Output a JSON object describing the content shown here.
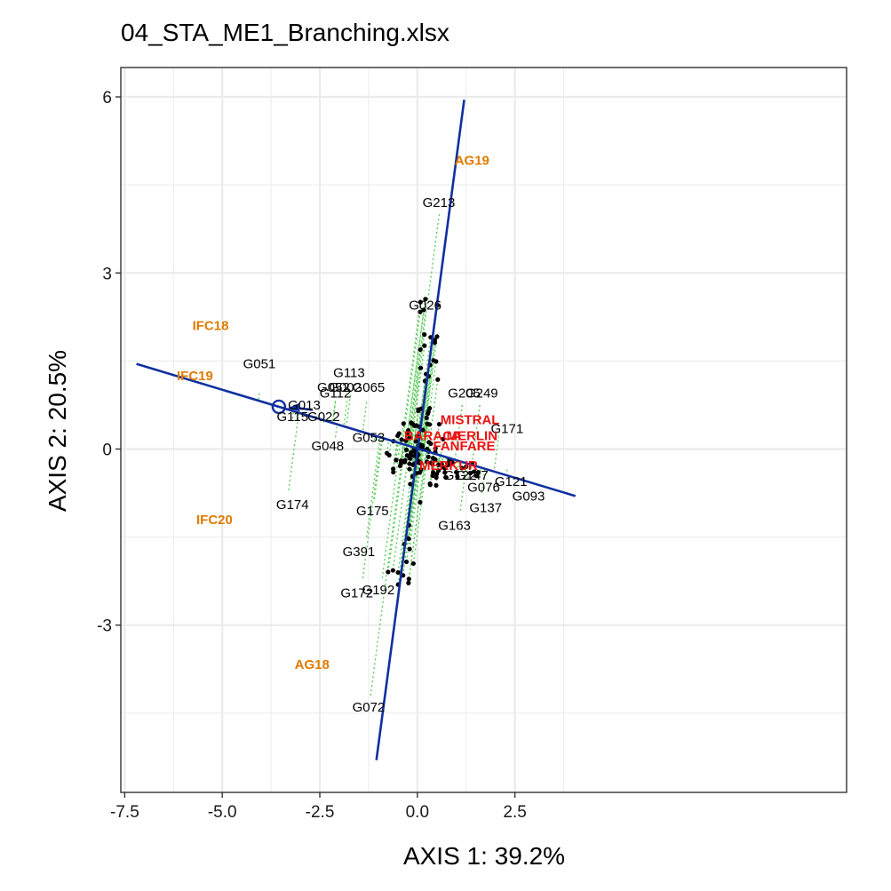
{
  "chart_data": {
    "type": "scatter",
    "title": "04_STA_ME1_Branching.xlsx",
    "xlabel": "AXIS 1: 39.2%",
    "ylabel": "AXIS 2: 20.5%",
    "xlim": [
      -7.6,
      11.0
    ],
    "ylim": [
      -5.85,
      6.5
    ],
    "x_ticks": [
      -7.5,
      -5.0,
      -2.5,
      0.0,
      2.5
    ],
    "x_tick_labels": [
      "-7.5",
      "-5.0",
      "-2.5",
      "0.0",
      "2.5"
    ],
    "y_ticks": [
      -3,
      0,
      3,
      6
    ],
    "y_tick_labels": [
      "-3",
      "0",
      "3",
      "6"
    ],
    "grid": true,
    "colors": {
      "axis_line": "#1030a0",
      "projection": "#55cc55",
      "point": "#000000",
      "environment": "#e07b00",
      "check": "#ee1111",
      "grid": "#ebebeb"
    },
    "average_environment_axis": {
      "x1": -7.2,
      "y1": 1.45,
      "x2": 4.05,
      "y2": -0.8,
      "aec_point": [
        -3.55,
        0.72
      ]
    },
    "perpendicular_axis": {
      "x1": -1.05,
      "y1": -5.3,
      "x2": 1.2,
      "y2": 5.95
    },
    "environments": [
      {
        "label": "AG19",
        "x": 1.4,
        "y": 4.92
      },
      {
        "label": "IFC18",
        "x": -5.3,
        "y": 2.1
      },
      {
        "label": "IFC19",
        "x": -5.7,
        "y": 1.25
      },
      {
        "label": "IFC20",
        "x": -5.2,
        "y": -1.2
      },
      {
        "label": "AG18",
        "x": -2.7,
        "y": -3.67
      }
    ],
    "checks": [
      {
        "label": "MISTRAL",
        "x": 1.35,
        "y": 0.5
      },
      {
        "label": "BARACA",
        "x": 0.4,
        "y": 0.23
      },
      {
        "label": "MERLIN",
        "x": 1.4,
        "y": 0.23
      },
      {
        "label": "FANFARE",
        "x": 1.2,
        "y": 0.05
      },
      {
        "label": "MERKUR",
        "x": 0.8,
        "y": -0.28
      }
    ],
    "labeled_genotypes": [
      {
        "label": "G213",
        "x": 0.55,
        "y": 4.2,
        "anchor": [
          0.56,
          4.0
        ]
      },
      {
        "label": "G026",
        "x": 0.2,
        "y": 2.45,
        "anchor": [
          0.2,
          2.3
        ]
      },
      {
        "label": "G051",
        "x": -4.05,
        "y": 1.45,
        "anchor": [
          -4.05,
          0.95
        ]
      },
      {
        "label": "G113",
        "x": -1.75,
        "y": 1.3,
        "anchor": [
          -1.7,
          1.0
        ]
      },
      {
        "label": "G052",
        "x": -2.15,
        "y": 1.05,
        "anchor": [
          -2.1,
          0.82
        ]
      },
      {
        "label": "G002",
        "x": -1.85,
        "y": 1.05,
        "anchor": [
          -1.8,
          0.82
        ]
      },
      {
        "label": "G065",
        "x": -1.25,
        "y": 1.05,
        "anchor": [
          -1.3,
          0.8
        ]
      },
      {
        "label": "G112",
        "x": -2.1,
        "y": 0.95,
        "anchor": [
          -2.1,
          0.8
        ]
      },
      {
        "label": "G013",
        "x": -2.9,
        "y": 0.75,
        "anchor": [
          -2.9,
          0.6
        ]
      },
      {
        "label": "G115",
        "x": -3.2,
        "y": 0.55,
        "anchor": [
          -3.2,
          0.52
        ]
      },
      {
        "label": "G022",
        "x": -2.4,
        "y": 0.55,
        "anchor": [
          -2.4,
          0.45
        ]
      },
      {
        "label": "G053",
        "x": -1.25,
        "y": 0.2,
        "anchor": [
          -1.1,
          0.15
        ]
      },
      {
        "label": "G048",
        "x": -2.3,
        "y": 0.05,
        "anchor": [
          -2.1,
          0.2
        ]
      },
      {
        "label": "G174",
        "x": -3.2,
        "y": -0.95,
        "anchor": [
          -3.3,
          -0.7
        ]
      },
      {
        "label": "G175",
        "x": -1.15,
        "y": -1.05,
        "anchor": [
          -1.1,
          -0.85
        ]
      },
      {
        "label": "G391",
        "x": -1.5,
        "y": -1.75,
        "anchor": [
          -1.3,
          -1.5
        ]
      },
      {
        "label": "G172",
        "x": -1.55,
        "y": -2.45,
        "anchor": [
          -1.4,
          -2.2
        ]
      },
      {
        "label": "G192",
        "x": -1.0,
        "y": -2.4,
        "anchor": [
          -0.9,
          -2.2
        ]
      },
      {
        "label": "G072",
        "x": -1.25,
        "y": -4.4,
        "anchor": [
          -1.2,
          -4.2
        ]
      },
      {
        "label": "G205",
        "x": 1.2,
        "y": 0.95,
        "anchor": [
          1.15,
          0.75
        ]
      },
      {
        "label": "G249",
        "x": 1.65,
        "y": 0.95,
        "anchor": [
          1.6,
          0.75
        ]
      },
      {
        "label": "G171",
        "x": 2.3,
        "y": 0.35,
        "anchor": [
          2.1,
          0.3
        ]
      },
      {
        "label": "G147",
        "x": 1.4,
        "y": -0.45,
        "anchor": [
          1.25,
          -0.35
        ]
      },
      {
        "label": "G076",
        "x": 1.7,
        "y": -0.65,
        "anchor": [
          1.6,
          -0.45
        ]
      },
      {
        "label": "G121",
        "x": 2.4,
        "y": -0.55,
        "anchor": [
          2.3,
          -0.35
        ]
      },
      {
        "label": "G122",
        "x": 1.1,
        "y": -0.45,
        "anchor": [
          1.3,
          -0.5
        ]
      },
      {
        "label": "G137",
        "x": 1.75,
        "y": -1.0,
        "anchor": [
          1.65,
          -0.75
        ]
      },
      {
        "label": "G093",
        "x": 2.85,
        "y": -0.8,
        "anchor": [
          2.9,
          -0.55
        ]
      },
      {
        "label": "G163",
        "x": 0.95,
        "y": -1.3,
        "anchor": [
          1.1,
          -1.05
        ]
      }
    ]
  }
}
